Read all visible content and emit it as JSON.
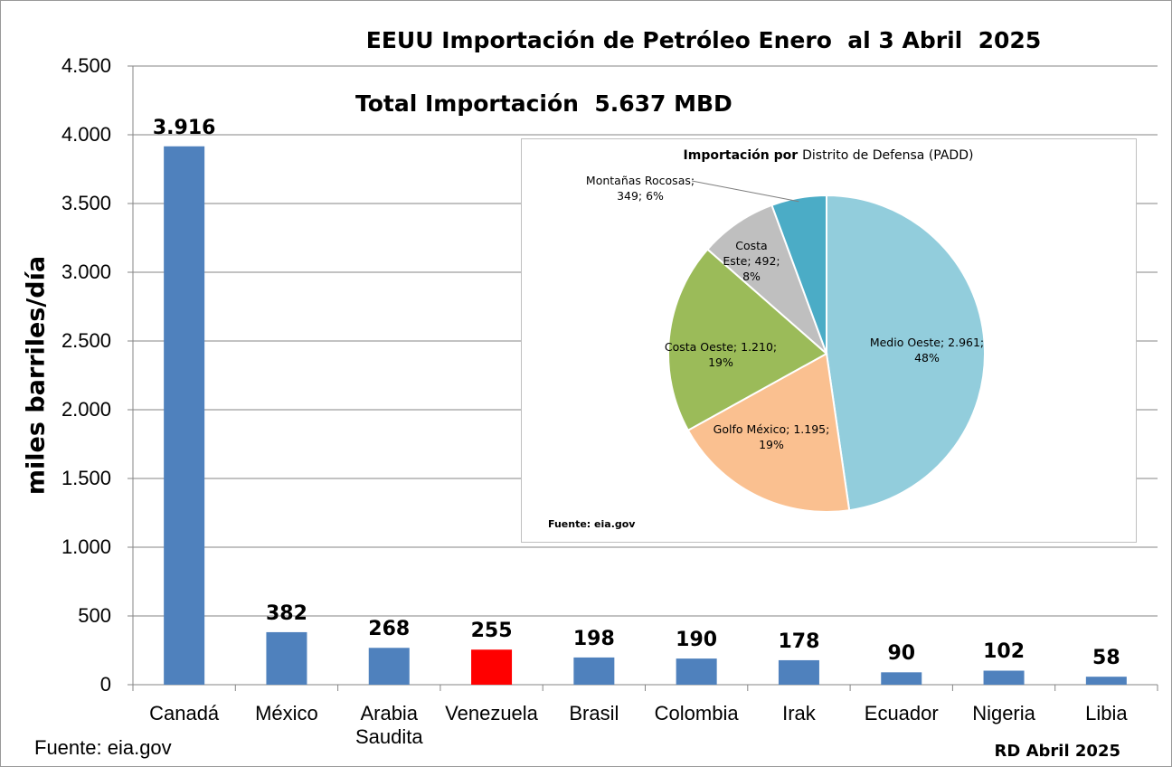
{
  "chart_data": [
    {
      "type": "bar",
      "title": "EEUU Importación de Petróleo Enero  al 3 Abril  2025",
      "subtitle": "Total Importación  5.637 MBD",
      "y_label": "miles barriles/día",
      "categories": [
        "Canadá",
        "México",
        "Arabia Saudita",
        "Venezuela",
        "Brasil",
        "Colombia",
        "Irak",
        "Ecuador",
        "Nigeria",
        "Libia"
      ],
      "values": [
        3916,
        382,
        268,
        255,
        198,
        190,
        178,
        90,
        102,
        58
      ],
      "value_labels": [
        "3.916",
        "382",
        "268",
        "255",
        "198",
        "190",
        "178",
        "90",
        "102",
        "58"
      ],
      "colors": [
        "#4f81bd",
        "#4f81bd",
        "#4f81bd",
        "#ff0000",
        "#4f81bd",
        "#4f81bd",
        "#4f81bd",
        "#4f81bd",
        "#4f81bd",
        "#4f81bd"
      ],
      "ylim": [
        0,
        4500
      ],
      "yticks": [
        0,
        500,
        {
          "value": 1000,
          "label": "1.000"
        },
        {
          "value": 1500,
          "label": "1.500"
        },
        {
          "value": 2000,
          "label": "2.000"
        },
        {
          "value": 2500,
          "label": "2.500"
        },
        {
          "value": 3000,
          "label": "3.000"
        },
        {
          "value": 3500,
          "label": "3.500"
        },
        {
          "value": 4000,
          "label": "4.000"
        },
        {
          "value": 4500,
          "label": "4.500"
        }
      ],
      "grid": true,
      "annotations": [
        "Fuente: eia.gov",
        "RD Abril 2025"
      ]
    },
    {
      "type": "pie",
      "title": "Importación por",
      "subtitle": "Distrito de Defensa (PADD)",
      "categories": [
        "Medio Oeste",
        "Golfo México",
        "Costa Oeste",
        "Costa Este",
        "Montañas Rocosas"
      ],
      "values": [
        2961,
        1195,
        1210,
        492,
        349
      ],
      "value_labels": [
        "Medio Oeste; 2.961; 48%",
        "Golfo México; 1.195; 19%",
        "Costa Oeste; 1.210; 19%",
        "Costa Este; 492; 8%",
        "Montañas Rocosas; 349; 6%"
      ],
      "colors": [
        "#92cddc",
        "#fac090",
        "#9bbb59",
        "#bfbfbf",
        "#4bacc6"
      ],
      "annotations": [
        "Fuente: eia.gov"
      ]
    }
  ]
}
